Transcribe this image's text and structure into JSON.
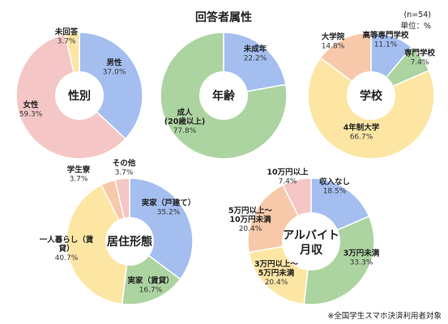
{
  "header": {
    "title": "回答者属性",
    "sample": "(n=54)",
    "unit": "単位：%"
  },
  "footnote": "※全国学生スマホ決済利用者対象",
  "colors": {
    "blue": "#a4bef0",
    "green": "#acd4a0",
    "pink": "#f5c6c6",
    "yellow": "#fde6a4",
    "peach": "#f7c9aa"
  },
  "chart_data": [
    {
      "type": "pie",
      "title": "性別",
      "categories": [
        "男性",
        "女性",
        "未回答"
      ],
      "values": [
        37.0,
        59.3,
        3.7
      ],
      "labels": [
        "37.0%",
        "59.3%",
        "3.7%"
      ],
      "colors": [
        "#a4bef0",
        "#f5c6c6",
        "#fde6a4"
      ]
    },
    {
      "type": "pie",
      "title": "年齢",
      "categories": [
        "未成年",
        "成人\n(20歳以上)"
      ],
      "values": [
        22.2,
        77.8
      ],
      "labels": [
        "22.2%",
        "77.8%"
      ],
      "colors": [
        "#a4bef0",
        "#acd4a0"
      ]
    },
    {
      "type": "pie",
      "title": "学校",
      "categories": [
        "高等専門学校",
        "専門学校",
        "4年制大学",
        "大学院"
      ],
      "values": [
        11.1,
        7.4,
        66.7,
        14.8
      ],
      "labels": [
        "11.1%",
        "7.4%",
        "66.7%",
        "14.8%"
      ],
      "colors": [
        "#a4bef0",
        "#acd4a0",
        "#fde6a4",
        "#f7c9aa"
      ]
    },
    {
      "type": "pie",
      "title": "居住形態",
      "categories": [
        "実家（戸建て）",
        "実家（賃貸）",
        "一人暮らし（賃\n貸）",
        "学生寮",
        "その他"
      ],
      "values": [
        35.2,
        16.7,
        40.7,
        3.7,
        3.7
      ],
      "labels": [
        "35.2%",
        "16.7%",
        "40.7%",
        "3.7%",
        "3.7%"
      ],
      "colors": [
        "#a4bef0",
        "#acd4a0",
        "#fde6a4",
        "#f7c9aa",
        "#f5c6c6"
      ]
    },
    {
      "type": "pie",
      "title": "アルバイト\n月収",
      "categories": [
        "収入なし",
        "3万円未満",
        "3万円以上～\n5万円未満",
        "5万円以上～\n10万円未満",
        "10万円以上"
      ],
      "values": [
        18.5,
        33.3,
        20.4,
        20.4,
        7.4
      ],
      "labels": [
        "18.5%",
        "33.3%",
        "20.4%",
        "20.4%",
        "7.4%"
      ],
      "colors": [
        "#a4bef0",
        "#acd4a0",
        "#fde6a4",
        "#f7c9aa",
        "#f5c6c6"
      ]
    }
  ]
}
